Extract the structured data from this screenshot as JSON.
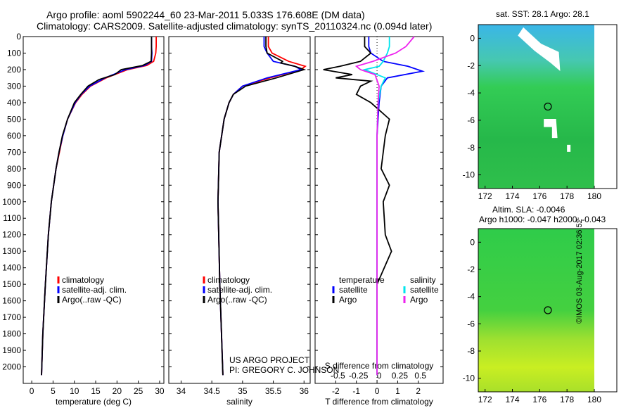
{
  "title_line1": "Argo profile: aoml 5902244_60 23-Mar-2011 5.033S 176.608E (DM data)",
  "title_line2": "Climatology: CARS2009. Satellite-adjusted climatology: synTS_20110324.nc (0.094d later)",
  "map_sst_title": "sat. SST: 28.1  Argo: 28.1",
  "map_sla_title1": "Altim. SLA: -0.0046",
  "map_sla_title2": "Argo h1000: -0.047 h2000: -0.043",
  "credit_project": "US ARGO PROJECT",
  "credit_pi": "PI: GREGORY C. JOHNSON",
  "footer_stamp": "©IMOS 03-Aug-2017 02:36:52",
  "colors": {
    "clim": "#ff0000",
    "sat": "#0000ff",
    "argo": "#000000",
    "sal_sat": "#00e5ee",
    "sal_argo": "#ee22ee"
  },
  "chart_data": [
    {
      "type": "line",
      "xlabel": "temperature (deg C)",
      "ylabel": "",
      "xlim": [
        -2,
        31
      ],
      "ylim": [
        2100,
        0
      ],
      "xticks": [
        0,
        5,
        10,
        15,
        20,
        25,
        30
      ],
      "yticks": [
        0,
        100,
        200,
        300,
        400,
        500,
        600,
        700,
        800,
        900,
        1000,
        1100,
        1200,
        1300,
        1400,
        1500,
        1600,
        1700,
        1800,
        1900,
        2000
      ],
      "legend": [
        "climatology",
        "satellite-adj. clim.",
        "Argo(..raw -QC)"
      ],
      "series": [
        {
          "name": "climatology",
          "depth": [
            0,
            60,
            100,
            150,
            175,
            200,
            250,
            300,
            350,
            400,
            500,
            600,
            700,
            800,
            1000,
            1200,
            1500,
            1800,
            2050
          ],
          "values": [
            29.2,
            29.2,
            29.1,
            28.6,
            27.0,
            22.5,
            17.5,
            13.8,
            11.8,
            10.3,
            8.4,
            7.3,
            6.5,
            5.7,
            4.6,
            3.9,
            3.2,
            2.6,
            2.3
          ]
        },
        {
          "name": "satellite-adj. clim.",
          "depth": [
            0,
            60,
            100,
            150,
            175,
            200,
            250,
            300,
            350,
            400,
            500,
            600,
            700,
            800,
            1000,
            1200,
            1500,
            1800,
            2050
          ],
          "values": [
            28.1,
            28.1,
            28.2,
            28.1,
            26.5,
            22.0,
            17.2,
            13.6,
            11.6,
            10.2,
            8.4,
            7.3,
            6.4,
            5.7,
            4.6,
            3.9,
            3.2,
            2.6,
            2.3
          ]
        },
        {
          "name": "Argo(..raw -QC)",
          "depth": [
            0,
            60,
            100,
            150,
            175,
            200,
            230,
            260,
            300,
            350,
            400,
            500,
            600,
            700,
            800,
            1000,
            1200,
            1500,
            1800,
            2050
          ],
          "values": [
            28.1,
            28.1,
            28.1,
            28.0,
            26.0,
            21.0,
            19.5,
            15.8,
            13.2,
            11.5,
            10.0,
            8.4,
            7.2,
            6.4,
            5.7,
            4.6,
            3.9,
            3.2,
            2.6,
            2.3
          ]
        }
      ]
    },
    {
      "type": "line",
      "xlabel": "salinity",
      "ylabel": "",
      "xlim": [
        33.8,
        36.1
      ],
      "ylim": [
        2100,
        0
      ],
      "xticks": [
        34,
        34.5,
        35,
        35.5,
        36
      ],
      "legend": [
        "climatology",
        "satellite-adj. clim.",
        "Argo(..raw -QC)"
      ],
      "series": [
        {
          "name": "climatology",
          "depth": [
            0,
            60,
            100,
            150,
            180,
            200,
            250,
            300,
            350,
            400,
            500,
            700,
            1000,
            1500,
            2050
          ],
          "values": [
            35.42,
            35.42,
            35.48,
            35.75,
            36.02,
            35.95,
            35.45,
            35.0,
            34.85,
            34.78,
            34.7,
            34.62,
            34.6,
            34.63,
            34.68
          ]
        },
        {
          "name": "satellite-adj. clim.",
          "depth": [
            0,
            60,
            100,
            150,
            180,
            200,
            250,
            300,
            350,
            400,
            500,
            700,
            1000,
            1500,
            2050
          ],
          "values": [
            35.35,
            35.35,
            35.4,
            35.5,
            35.85,
            35.95,
            35.4,
            35.0,
            34.85,
            34.78,
            34.7,
            34.62,
            34.6,
            34.63,
            34.68
          ]
        },
        {
          "name": "Argo(..raw -QC)",
          "depth": [
            0,
            60,
            100,
            150,
            160,
            180,
            200,
            250,
            300,
            350,
            400,
            500,
            700,
            1000,
            1500,
            2050
          ],
          "values": [
            35.38,
            35.38,
            35.4,
            35.65,
            35.62,
            35.85,
            36.0,
            35.55,
            35.05,
            34.85,
            34.78,
            34.7,
            34.62,
            34.6,
            34.63,
            34.68
          ]
        }
      ]
    },
    {
      "type": "line",
      "xlabel": "T difference from climatology",
      "xlabel2": "S difference from climatology",
      "xlim": [
        -3,
        3.2
      ],
      "ylim": [
        2100,
        0
      ],
      "xticks_T": [
        -2,
        -1,
        0,
        1,
        2
      ],
      "xticks_S": [
        "-0.5",
        "-0.25",
        "0",
        "0.25",
        "0.5"
      ],
      "legend_titles": [
        "temperature",
        "salinity"
      ],
      "legend": [
        "satellite",
        "Argo",
        "satellite",
        "Argo"
      ],
      "series": [
        {
          "name": "T satellite",
          "depth": [
            0,
            60,
            100,
            150,
            180,
            210,
            250,
            300,
            400,
            600,
            1000,
            1500,
            2050
          ],
          "values": [
            -0.4,
            -0.4,
            -0.3,
            0.3,
            1.5,
            2.2,
            0.5,
            0.2,
            0.1,
            0.0,
            0.0,
            0.0,
            0.0
          ]
        },
        {
          "name": "T Argo",
          "depth": [
            0,
            60,
            100,
            150,
            180,
            200,
            230,
            250,
            270,
            300,
            350,
            400,
            500,
            600,
            700,
            800,
            900,
            1000,
            1200,
            1300,
            1500,
            2050
          ],
          "values": [
            -0.6,
            -0.6,
            -0.3,
            -0.8,
            -1.8,
            -2.6,
            -1.2,
            -2.0,
            -0.3,
            -0.8,
            -1.0,
            -0.3,
            0.6,
            0.4,
            0.3,
            0.2,
            0.6,
            0.3,
            0.4,
            0.7,
            0.0,
            0.0
          ]
        },
        {
          "name": "S satellite",
          "depth": [
            0,
            60,
            100,
            150,
            180,
            200,
            250,
            300,
            400,
            600,
            1000,
            1500,
            2050
          ],
          "values": [
            0.6,
            0.6,
            0.5,
            0.3,
            0.1,
            -0.6,
            0.4,
            0.2,
            0.05,
            0.0,
            0.0,
            0.0,
            0.0
          ]
        },
        {
          "name": "S Argo",
          "depth": [
            0,
            60,
            100,
            150,
            180,
            200,
            230,
            300,
            400,
            600,
            1000,
            1500,
            2050
          ],
          "values": [
            1.8,
            1.4,
            0.9,
            -0.2,
            -1.0,
            -0.8,
            -0.1,
            0.1,
            0.05,
            0.0,
            0.0,
            0.0,
            0.0
          ]
        }
      ]
    },
    {
      "type": "heatmap",
      "title": "sat. SST: 28.1  Argo: 28.1",
      "xlim": [
        171.5,
        180
      ],
      "ylim": [
        -11,
        1
      ],
      "xticks": [
        172,
        174,
        176,
        178,
        180
      ],
      "yticks": [
        0,
        -2,
        -4,
        -6,
        -8,
        -10
      ],
      "marker": {
        "lon": 176.6,
        "lat": -5.0
      }
    },
    {
      "type": "heatmap",
      "title": "Altim. SLA: -0.0046",
      "xlim": [
        171.5,
        180
      ],
      "ylim": [
        -11,
        1
      ],
      "xticks": [
        172,
        174,
        176,
        178,
        180
      ],
      "yticks": [
        0,
        -2,
        -4,
        -6,
        -8,
        -10
      ],
      "marker": {
        "lon": 176.6,
        "lat": -5.0
      }
    }
  ]
}
